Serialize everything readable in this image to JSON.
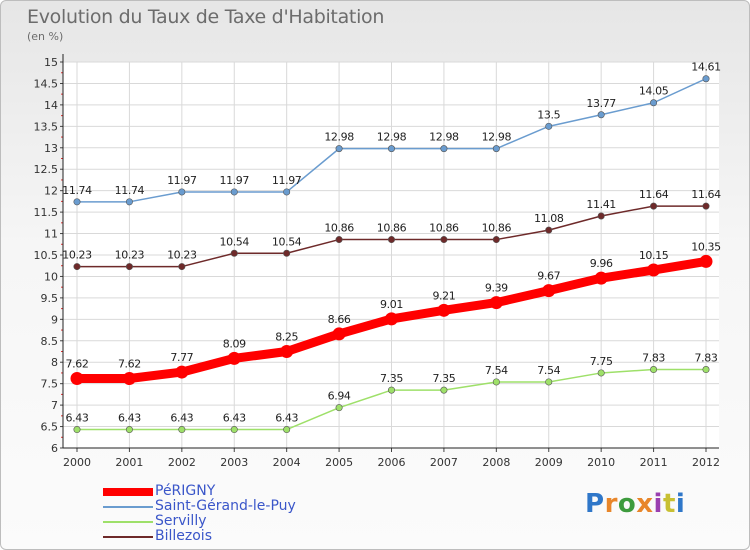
{
  "chart_data": {
    "type": "line",
    "title": "Evolution du Taux de Taxe d'Habitation",
    "subtitle": "(en %)",
    "x": [
      "2000",
      "2001",
      "2002",
      "2003",
      "2004",
      "2005",
      "2006",
      "2007",
      "2008",
      "2009",
      "2010",
      "2011",
      "2012"
    ],
    "ylim": [
      6,
      15
    ],
    "yticks": [
      "6",
      "6.5",
      "7",
      "7.5",
      "8",
      "8.5",
      "9",
      "9.5",
      "10",
      "10.5",
      "11",
      "11.5",
      "12",
      "12.5",
      "13",
      "13.5",
      "14",
      "14.5",
      "15"
    ],
    "grid": true,
    "legend_position": "bottom-left",
    "series": [
      {
        "name": "PéRIGNY",
        "color": "#ff0000",
        "values": [
          7.62,
          7.62,
          7.77,
          8.09,
          8.25,
          8.66,
          9.01,
          9.21,
          9.39,
          9.67,
          9.96,
          10.15,
          10.35
        ],
        "labels": [
          "7.62",
          "7.62",
          "7.77",
          "8.09",
          "8.25",
          "8.66",
          "9.01",
          "9.21",
          "9.39",
          "9.67",
          "9.96",
          "10.15",
          "10.35"
        ]
      },
      {
        "name": "Saint-Gérand-le-Puy",
        "color": "#6a9ccf",
        "values": [
          11.74,
          11.74,
          11.97,
          11.97,
          11.97,
          12.98,
          12.98,
          12.98,
          12.98,
          13.5,
          13.77,
          14.05,
          14.61
        ],
        "labels": [
          "11.74",
          "11.74",
          "11.97",
          "11.97",
          "11.97",
          "12.98",
          "12.98",
          "12.98",
          "12.98",
          "13.5",
          "13.77",
          "14.05",
          "14.61"
        ]
      },
      {
        "name": "Servilly",
        "color": "#9ee069",
        "values": [
          6.43,
          6.43,
          6.43,
          6.43,
          6.43,
          6.94,
          7.35,
          7.35,
          7.54,
          7.54,
          7.75,
          7.83,
          7.83
        ],
        "labels": [
          "6.43",
          "6.43",
          "6.43",
          "6.43",
          "6.43",
          "6.94",
          "7.35",
          "7.35",
          "7.54",
          "7.54",
          "7.75",
          "7.83",
          "7.83"
        ]
      },
      {
        "name": "Billezois",
        "color": "#6e2a2a",
        "values": [
          10.23,
          10.23,
          10.23,
          10.54,
          10.54,
          10.86,
          10.86,
          10.86,
          10.86,
          11.08,
          11.41,
          11.64,
          11.64
        ],
        "labels": [
          "10.23",
          "10.23",
          "10.23",
          "10.54",
          "10.54",
          "10.86",
          "10.86",
          "10.86",
          "10.86",
          "11.08",
          "11.41",
          "11.64",
          "11.64"
        ]
      }
    ]
  },
  "legend": {
    "items": [
      {
        "label": "PéRIGNY",
        "color": "#ff0000"
      },
      {
        "label": "Saint-Gérand-le-Puy",
        "color": "#6a9ccf"
      },
      {
        "label": "Servilly",
        "color": "#9ee069"
      },
      {
        "label": "Billezois",
        "color": "#6e2a2a"
      }
    ]
  },
  "logo": {
    "text": "Proxiti"
  }
}
